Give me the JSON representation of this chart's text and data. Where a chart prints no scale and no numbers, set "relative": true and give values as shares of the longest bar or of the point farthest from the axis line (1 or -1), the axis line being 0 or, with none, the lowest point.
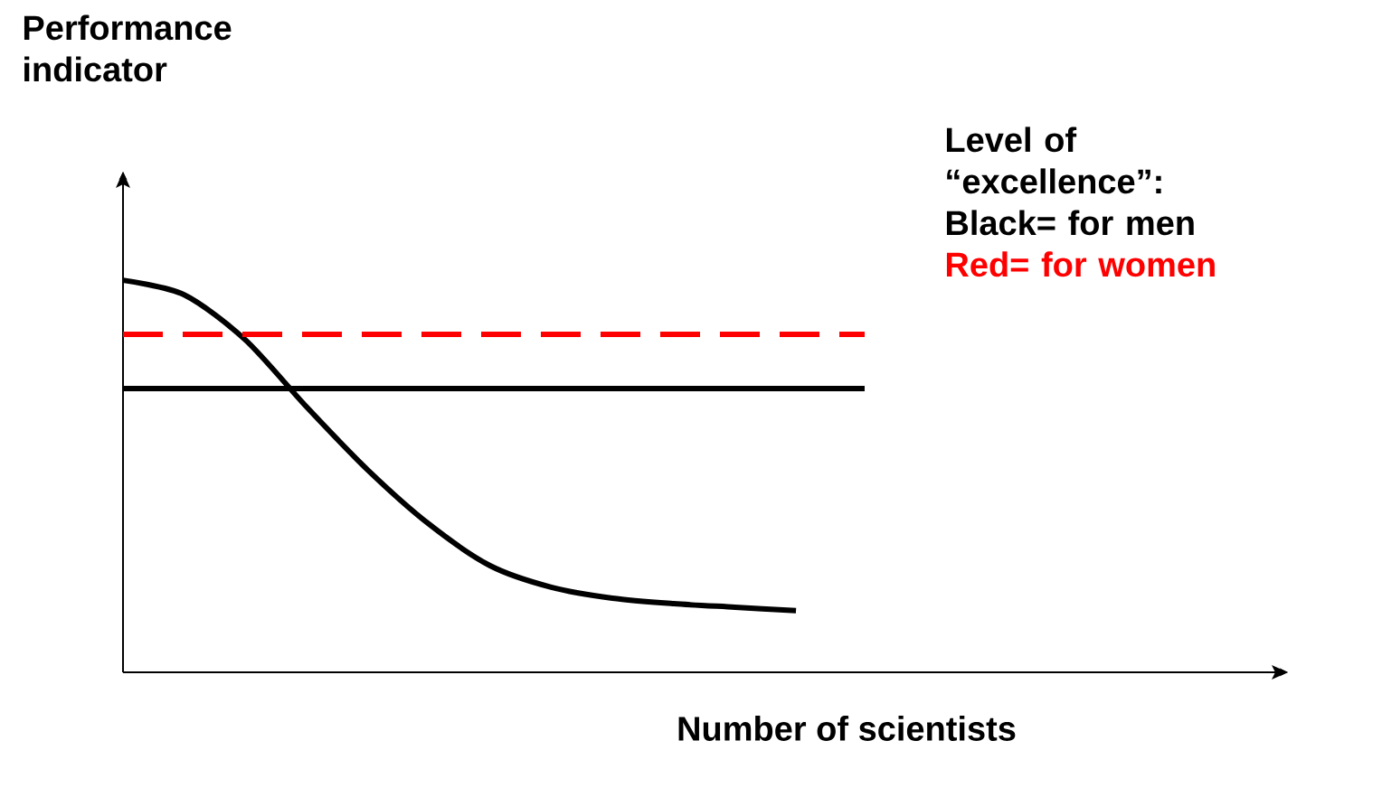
{
  "chart_data": {
    "type": "line",
    "relative": true,
    "annotations": [
      "Performance indicator"
    ],
    "xlabel": "Number of scientists",
    "legend_title": "Level of “excellence”:",
    "categories": [
      null,
      null,
      null,
      null,
      null,
      null,
      null,
      null,
      null,
      null,
      null,
      null
    ],
    "series": [
      {
        "color": "#000000",
        "line_style": "solid",
        "values": [
          1,
          0.963,
          0.848,
          0.677,
          0.516,
          0.378,
          0.272,
          0.217,
          0.189,
          0.175,
          0.166,
          0.157
        ]
      }
    ],
    "ref_lines": [
      {
        "axis": "y",
        "value": 0.724,
        "label": "Black= for men",
        "color": "#000000",
        "line_style": "solid"
      },
      {
        "axis": "y",
        "value": 0.862,
        "label": "Red= for women",
        "color": "#ff0000",
        "line_style": "dashed"
      }
    ]
  }
}
